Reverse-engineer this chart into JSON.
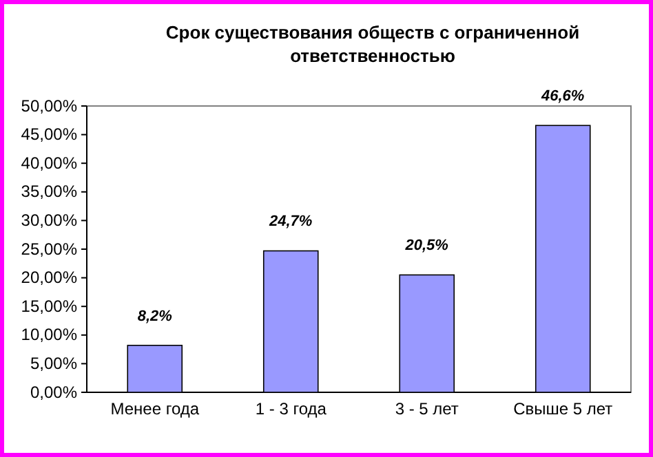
{
  "chart_data": {
    "type": "bar",
    "title": "Срок существования обществ с ограниченной ответственностью",
    "categories": [
      "Менее года",
      "1 - 3 года",
      "3 - 5 лет",
      "Свыше 5 лет"
    ],
    "values": [
      8.2,
      24.7,
      20.5,
      46.6
    ],
    "color": "#9999ff",
    "value_labels": [
      "8,2%",
      "24,7%",
      "20,5%",
      "46,6%"
    ],
    "ylim": [
      0,
      50
    ],
    "yticks": [
      {
        "value": 0,
        "label": "0,00%"
      },
      {
        "value": 5,
        "label": "5,00%"
      },
      {
        "value": 10,
        "label": "10,00%"
      },
      {
        "value": 15,
        "label": "15,00%"
      },
      {
        "value": 20,
        "label": "20,00%"
      },
      {
        "value": 25,
        "label": "25,00%"
      },
      {
        "value": 30,
        "label": "30,00%"
      },
      {
        "value": 35,
        "label": "35,00%"
      },
      {
        "value": 40,
        "label": "40,00%"
      },
      {
        "value": 45,
        "label": "45,00%"
      },
      {
        "value": 50,
        "label": "50,00%"
      }
    ],
    "grid": false
  }
}
